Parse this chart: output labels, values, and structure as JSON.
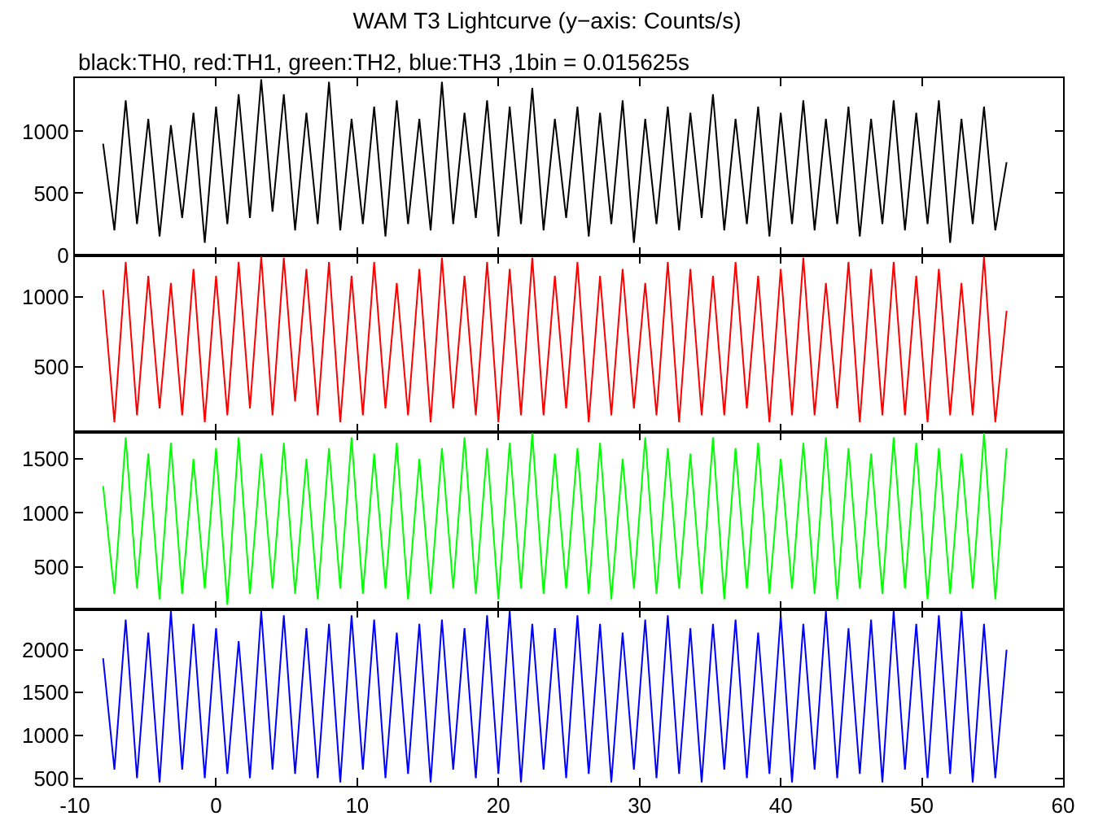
{
  "chart_data": [
    {
      "type": "line",
      "title": "WAM T3 Lightcurve (y−axis: Counts/s)",
      "subtitle": "black:TH0, red:TH1, green:TH2, blue:TH3 ,1bin = 0.015625s",
      "tick_labels": "y",
      "x": [
        -8,
        -7.2,
        -6.4,
        -5.6,
        -4.8,
        -4,
        -3.2,
        -2.4,
        -1.6,
        -0.8,
        0,
        0.8,
        1.6,
        2.4,
        3.2,
        4,
        4.8,
        5.6,
        6.4,
        7.2,
        8,
        8.8,
        9.6,
        10.4,
        11.2,
        12,
        12.8,
        13.6,
        14.4,
        15.2,
        16,
        16.8,
        17.6,
        18.4,
        19.2,
        20,
        20.8,
        21.6,
        22.4,
        23.2,
        24,
        24.8,
        25.6,
        26.4,
        27.2,
        28,
        28.8,
        29.6,
        30.4,
        31.2,
        32,
        32.8,
        33.6,
        34.4,
        35.2,
        36,
        36.8,
        37.6,
        38.4,
        39.2,
        40,
        40.8,
        41.6,
        42.4,
        43.2,
        44,
        44.8,
        45.6,
        46.4,
        47.2,
        48,
        48.8,
        49.6,
        50.4,
        51.2,
        52,
        52.8,
        53.6,
        54.4,
        55.2,
        56
      ],
      "xlim": [
        -10,
        60
      ],
      "xticks": [
        -10,
        0,
        10,
        20,
        30,
        40,
        50,
        60
      ],
      "ylim": [
        0,
        1430
      ],
      "yticks": [
        0,
        500,
        1000
      ],
      "series": [
        {
          "color": "#000000",
          "values": [
            900,
            200,
            1250,
            250,
            1100,
            150,
            1050,
            300,
            1150,
            100,
            1200,
            250,
            1300,
            300,
            1420,
            350,
            1300,
            200,
            1150,
            250,
            1400,
            200,
            1100,
            250,
            1200,
            150,
            1250,
            250,
            1100,
            200,
            1400,
            250,
            1150,
            300,
            1250,
            150,
            1200,
            250,
            1350,
            200,
            1100,
            300,
            1200,
            150,
            1150,
            250,
            1250,
            100,
            1100,
            250,
            1200,
            200,
            1150,
            300,
            1300,
            200,
            1100,
            250,
            1200,
            150,
            1150,
            250,
            1250,
            200,
            1100,
            250,
            1200,
            150,
            1100,
            250,
            1250,
            200,
            1150,
            250,
            1250,
            100,
            1100,
            250,
            1200,
            200,
            750
          ]
        }
      ]
    },
    {
      "type": "line",
      "tick_labels": "y",
      "x": [
        -8,
        -7.2,
        -6.4,
        -5.6,
        -4.8,
        -4,
        -3.2,
        -2.4,
        -1.6,
        -0.8,
        0,
        0.8,
        1.6,
        2.4,
        3.2,
        4,
        4.8,
        5.6,
        6.4,
        7.2,
        8,
        8.8,
        9.6,
        10.4,
        11.2,
        12,
        12.8,
        13.6,
        14.4,
        15.2,
        16,
        16.8,
        17.6,
        18.4,
        19.2,
        20,
        20.8,
        21.6,
        22.4,
        23.2,
        24,
        24.8,
        25.6,
        26.4,
        27.2,
        28,
        28.8,
        29.6,
        30.4,
        31.2,
        32,
        32.8,
        33.6,
        34.4,
        35.2,
        36,
        36.8,
        37.6,
        38.4,
        39.2,
        40,
        40.8,
        41.6,
        42.4,
        43.2,
        44,
        44.8,
        45.6,
        46.4,
        47.2,
        48,
        48.8,
        49.6,
        50.4,
        51.2,
        52,
        52.8,
        53.6,
        54.4,
        55.2,
        56
      ],
      "xlim": [
        -10,
        60
      ],
      "xticks": [
        -10,
        0,
        10,
        20,
        30,
        40,
        50,
        60
      ],
      "ylim": [
        30,
        1300
      ],
      "yticks": [
        500,
        1000
      ],
      "series": [
        {
          "color": "#ff0000",
          "values": [
            1050,
            100,
            1250,
            150,
            1150,
            200,
            1100,
            150,
            1200,
            100,
            1150,
            150,
            1250,
            200,
            1290,
            150,
            1280,
            250,
            1200,
            150,
            1250,
            100,
            1150,
            150,
            1250,
            200,
            1100,
            150,
            1200,
            100,
            1280,
            200,
            1150,
            150,
            1250,
            100,
            1200,
            150,
            1280,
            150,
            1150,
            200,
            1250,
            100,
            1150,
            150,
            1200,
            200,
            1100,
            150,
            1250,
            100,
            1200,
            150,
            1150,
            150,
            1250,
            200,
            1150,
            100,
            1200,
            150,
            1280,
            150,
            1100,
            200,
            1250,
            100,
            1200,
            150,
            1250,
            150,
            1150,
            100,
            1200,
            150,
            1100,
            150,
            1290,
            100,
            900
          ]
        }
      ]
    },
    {
      "type": "line",
      "tick_labels": "y",
      "x": [
        -8,
        -7.2,
        -6.4,
        -5.6,
        -4.8,
        -4,
        -3.2,
        -2.4,
        -1.6,
        -0.8,
        0,
        0.8,
        1.6,
        2.4,
        3.2,
        4,
        4.8,
        5.6,
        6.4,
        7.2,
        8,
        8.8,
        9.6,
        10.4,
        11.2,
        12,
        12.8,
        13.6,
        14.4,
        15.2,
        16,
        16.8,
        17.6,
        18.4,
        19.2,
        20,
        20.8,
        21.6,
        22.4,
        23.2,
        24,
        24.8,
        25.6,
        26.4,
        27.2,
        28,
        28.8,
        29.6,
        30.4,
        31.2,
        32,
        32.8,
        33.6,
        34.4,
        35.2,
        36,
        36.8,
        37.6,
        38.4,
        39.2,
        40,
        40.8,
        41.6,
        42.4,
        43.2,
        44,
        44.8,
        45.6,
        46.4,
        47.2,
        48,
        48.8,
        49.6,
        50.4,
        51.2,
        52,
        52.8,
        53.6,
        54.4,
        55.2,
        56
      ],
      "xlim": [
        -10,
        60
      ],
      "xticks": [
        -10,
        0,
        10,
        20,
        30,
        40,
        50,
        60
      ],
      "ylim": [
        110,
        1750
      ],
      "yticks": [
        500,
        1000,
        1500
      ],
      "series": [
        {
          "color": "#00ff00",
          "values": [
            1250,
            250,
            1700,
            300,
            1550,
            200,
            1650,
            250,
            1500,
            300,
            1600,
            150,
            1700,
            250,
            1550,
            300,
            1650,
            250,
            1500,
            200,
            1600,
            300,
            1700,
            250,
            1550,
            300,
            1650,
            200,
            1500,
            250,
            1600,
            300,
            1700,
            250,
            1600,
            200,
            1650,
            300,
            1740,
            250,
            1550,
            300,
            1600,
            250,
            1650,
            200,
            1500,
            300,
            1700,
            250,
            1600,
            300,
            1550,
            250,
            1700,
            200,
            1600,
            300,
            1650,
            250,
            1500,
            300,
            1650,
            250,
            1700,
            200,
            1600,
            300,
            1550,
            250,
            1700,
            300,
            1650,
            200,
            1600,
            250,
            1550,
            300,
            1740,
            200,
            1600
          ]
        }
      ]
    },
    {
      "type": "line",
      "x": [
        -8,
        -7.2,
        -6.4,
        -5.6,
        -4.8,
        -4,
        -3.2,
        -2.4,
        -1.6,
        -0.8,
        0,
        0.8,
        1.6,
        2.4,
        3.2,
        4,
        4.8,
        5.6,
        6.4,
        7.2,
        8,
        8.8,
        9.6,
        10.4,
        11.2,
        12,
        12.8,
        13.6,
        14.4,
        15.2,
        16,
        16.8,
        17.6,
        18.4,
        19.2,
        20,
        20.8,
        21.6,
        22.4,
        23.2,
        24,
        24.8,
        25.6,
        26.4,
        27.2,
        28,
        28.8,
        29.6,
        30.4,
        31.2,
        32,
        32.8,
        33.6,
        34.4,
        35.2,
        36,
        36.8,
        37.6,
        38.4,
        39.2,
        40,
        40.8,
        41.6,
        42.4,
        43.2,
        44,
        44.8,
        45.6,
        46.4,
        47.2,
        48,
        48.8,
        49.6,
        50.4,
        51.2,
        52,
        52.8,
        53.6,
        54.4,
        55.2,
        56
      ],
      "xlim": [
        -10,
        60
      ],
      "xticks": [
        -10,
        0,
        10,
        20,
        30,
        40,
        50,
        60
      ],
      "ylim": [
        410,
        2475
      ],
      "yticks": [
        500,
        1000,
        1500,
        2000
      ],
      "series": [
        {
          "color": "#0000ff",
          "values": [
            1900,
            600,
            2350,
            500,
            2200,
            450,
            2450,
            600,
            2300,
            500,
            2250,
            550,
            2100,
            500,
            2450,
            600,
            2400,
            550,
            2250,
            500,
            2300,
            450,
            2400,
            600,
            2350,
            500,
            2200,
            550,
            2300,
            450,
            2350,
            600,
            2250,
            500,
            2400,
            550,
            2450,
            450,
            2300,
            600,
            2250,
            500,
            2400,
            550,
            2300,
            450,
            2200,
            600,
            2350,
            500,
            2400,
            550,
            2250,
            450,
            2300,
            600,
            2350,
            500,
            2200,
            550,
            2400,
            450,
            2300,
            600,
            2450,
            500,
            2250,
            550,
            2350,
            450,
            2450,
            600,
            2300,
            500,
            2400,
            550,
            2450,
            450,
            2300,
            500,
            2000
          ]
        }
      ]
    }
  ]
}
